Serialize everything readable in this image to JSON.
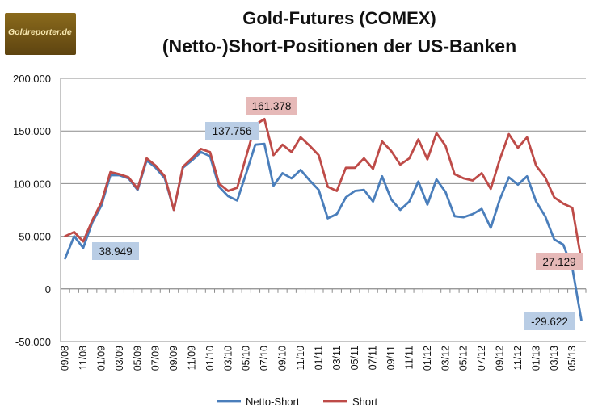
{
  "logo_text": "Goldreporter.de",
  "chart_data": {
    "type": "line",
    "title": "Gold-Futures (COMEX)",
    "subtitle": "(Netto-)Short-Positionen der US-Banken",
    "ylim": [
      -50000,
      200000
    ],
    "y_ticks": [
      "200.000",
      "150.000",
      "100.000",
      "50.000",
      "0",
      "-50.000"
    ],
    "y_tick_values": [
      200000,
      150000,
      100000,
      50000,
      0,
      -50000
    ],
    "grid": true,
    "legend_position": "bottom",
    "x": [
      "09/08",
      "10/08",
      "11/08",
      "12/08",
      "01/09",
      "02/09",
      "03/09",
      "04/09",
      "05/09",
      "06/09",
      "07/09",
      "08/09",
      "09/09",
      "10/09",
      "11/09",
      "12/09",
      "01/10",
      "02/10",
      "03/10",
      "04/10",
      "05/10",
      "06/10",
      "07/10",
      "08/10",
      "09/10",
      "10/10",
      "11/10",
      "12/10",
      "01/11",
      "02/11",
      "03/11",
      "04/11",
      "05/11",
      "06/11",
      "07/11",
      "08/11",
      "09/11",
      "10/11",
      "11/11",
      "12/11",
      "01/12",
      "02/12",
      "03/12",
      "04/12",
      "05/12",
      "06/12",
      "07/12",
      "08/12",
      "09/12",
      "10/12",
      "11/12",
      "12/12",
      "01/13",
      "02/13",
      "03/13",
      "04/13",
      "05/13",
      "06/13"
    ],
    "x_tick_labels": [
      "09/08",
      "11/08",
      "01/09",
      "03/09",
      "05/09",
      "07/09",
      "09/09",
      "11/09",
      "01/10",
      "03/10",
      "05/10",
      "07/10",
      "09/10",
      "11/10",
      "01/11",
      "03/11",
      "05/11",
      "07/11",
      "09/11",
      "11/11",
      "01/12",
      "03/12",
      "05/12",
      "07/12",
      "09/12",
      "11/12",
      "01/13",
      "03/13",
      "05/13"
    ],
    "series": [
      {
        "name": "Netto-Short",
        "color": "#4a7ebb",
        "values": [
          29000,
          50000,
          38949,
          63000,
          79000,
          108000,
          108000,
          105000,
          94000,
          122000,
          115000,
          105000,
          75000,
          115000,
          122000,
          130000,
          126000,
          97000,
          88000,
          84000,
          110000,
          137000,
          137756,
          98000,
          110000,
          105000,
          113000,
          103000,
          94000,
          67000,
          71000,
          87000,
          93000,
          94000,
          83000,
          107000,
          85000,
          75000,
          83000,
          102000,
          80000,
          104000,
          92000,
          69000,
          68000,
          71000,
          76000,
          58000,
          85000,
          106000,
          99000,
          107000,
          83000,
          69000,
          47000,
          42000,
          20000,
          -29622
        ]
      },
      {
        "name": "Short",
        "color": "#be4b48",
        "values": [
          50000,
          54000,
          45000,
          65000,
          82000,
          111000,
          109000,
          106000,
          95000,
          124000,
          117000,
          107000,
          75000,
          116000,
          124000,
          133000,
          130000,
          100000,
          93000,
          96000,
          126000,
          156000,
          161378,
          127000,
          137000,
          130000,
          144000,
          136000,
          127000,
          97000,
          93000,
          115000,
          115000,
          124000,
          114000,
          140000,
          131000,
          118000,
          124000,
          142000,
          123000,
          148000,
          136000,
          109000,
          105000,
          103000,
          110000,
          95000,
          123000,
          147000,
          134000,
          144000,
          117000,
          106000,
          87000,
          81000,
          77000,
          27129
        ]
      }
    ],
    "annotations": [
      {
        "text": "38.949",
        "series": "Netto-Short",
        "color": "#b9cde5"
      },
      {
        "text": "137.756",
        "series": "Netto-Short",
        "color": "#b9cde5"
      },
      {
        "text": "161.378",
        "series": "Short",
        "color": "#e6b9b8"
      },
      {
        "text": "27.129",
        "series": "Short",
        "color": "#e6b9b8"
      },
      {
        "text": "-29.622",
        "series": "Netto-Short",
        "color": "#b9cde5"
      }
    ]
  }
}
